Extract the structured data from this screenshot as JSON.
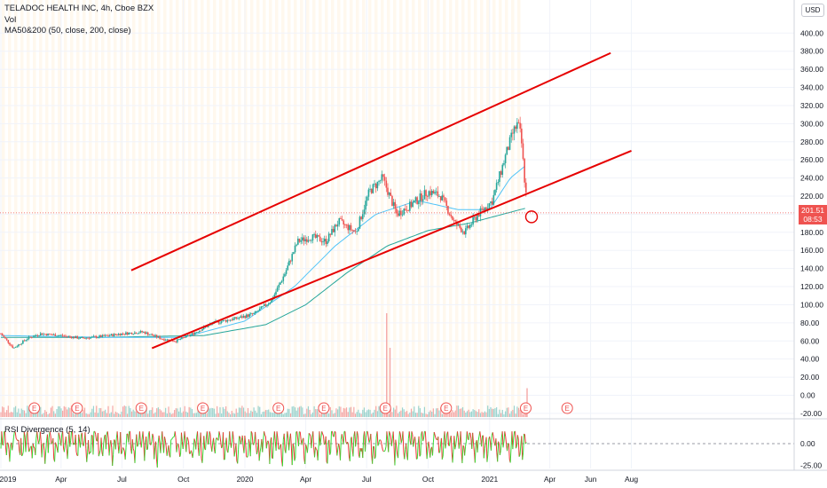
{
  "header": {
    "title": "TELADOC HEALTH INC, 4h, Cboe BZX",
    "vol_label": "Vol",
    "ma_label": "MA50&200 (50, close, 200, close)",
    "rsi_label": "RSI Divergence (5, 14)"
  },
  "currency_button": "USD",
  "last_price": {
    "value": "201.51",
    "countdown": "08:53"
  },
  "earnings_marker": "E",
  "colors": {
    "up": "#26a69a",
    "down": "#ef5350",
    "channel": "#e60000",
    "ma_fast": "#4fc3f7",
    "ma_slow": "#26a69a",
    "rsi_up": "#33dd33",
    "rsi_down": "#ee3333",
    "session_shade": "#fff8ee"
  },
  "chart_data": [
    {
      "type": "candlestick",
      "title": "TELADOC HEALTH INC, 4h, Cboe BZX",
      "price_axis_labels": [
        "400.00",
        "380.00",
        "360.00",
        "340.00",
        "320.00",
        "300.00",
        "280.00",
        "260.00",
        "240.00",
        "220.00",
        "200.00",
        "180.00",
        "160.00",
        "140.00",
        "120.00",
        "100.00",
        "80.00",
        "60.00",
        "40.00",
        "20.00",
        "0.00",
        "-20.00"
      ],
      "time_axis_labels": [
        "2019",
        "Apr",
        "Jul",
        "Oct",
        "2020",
        "Apr",
        "Jul",
        "Oct",
        "2021",
        "Apr",
        "Jun",
        "Aug"
      ],
      "ylim": [
        -20,
        400
      ],
      "price_path": [
        [
          "2019-01-01",
          68
        ],
        [
          "2019-01-20",
          52
        ],
        [
          "2019-02-10",
          63
        ],
        [
          "2019-03-01",
          68
        ],
        [
          "2019-04-01",
          66
        ],
        [
          "2019-05-01",
          63
        ],
        [
          "2019-06-01",
          65
        ],
        [
          "2019-07-01",
          68
        ],
        [
          "2019-08-01",
          70
        ],
        [
          "2019-09-01",
          62
        ],
        [
          "2019-09-20",
          60
        ],
        [
          "2019-10-15",
          68
        ],
        [
          "2019-11-15",
          80
        ],
        [
          "2019-12-20",
          85
        ],
        [
          "2020-01-15",
          90
        ],
        [
          "2020-02-10",
          105
        ],
        [
          "2020-03-01",
          135
        ],
        [
          "2020-03-20",
          170
        ],
        [
          "2020-04-10",
          175
        ],
        [
          "2020-05-01",
          170
        ],
        [
          "2020-05-20",
          192
        ],
        [
          "2020-06-15",
          180
        ],
        [
          "2020-07-05",
          225
        ],
        [
          "2020-07-25",
          240
        ],
        [
          "2020-08-15",
          200
        ],
        [
          "2020-09-05",
          210
        ],
        [
          "2020-10-01",
          225
        ],
        [
          "2020-10-20",
          220
        ],
        [
          "2020-11-10",
          190
        ],
        [
          "2020-11-25",
          180
        ],
        [
          "2020-12-15",
          200
        ],
        [
          "2021-01-05",
          215
        ],
        [
          "2021-01-25",
          265
        ],
        [
          "2021-02-05",
          290
        ],
        [
          "2021-02-12",
          300
        ],
        [
          "2021-02-17",
          285
        ],
        [
          "2021-02-22",
          240
        ],
        [
          "2021-02-25",
          218
        ],
        [
          "2021-02-26",
          201.51
        ]
      ],
      "ma50_path": [
        [
          "2019-01-01",
          66
        ],
        [
          "2019-06-01",
          64
        ],
        [
          "2019-10-01",
          64
        ],
        [
          "2020-01-01",
          82
        ],
        [
          "2020-03-15",
          120
        ],
        [
          "2020-05-15",
          165
        ],
        [
          "2020-07-15",
          200
        ],
        [
          "2020-09-15",
          215
        ],
        [
          "2020-11-15",
          205
        ],
        [
          "2021-01-01",
          205
        ],
        [
          "2021-02-01",
          240
        ],
        [
          "2021-02-26",
          255
        ]
      ],
      "ma200_path": [
        [
          "2019-01-01",
          64
        ],
        [
          "2019-06-01",
          64
        ],
        [
          "2019-11-01",
          66
        ],
        [
          "2020-02-01",
          78
        ],
        [
          "2020-04-01",
          100
        ],
        [
          "2020-06-01",
          135
        ],
        [
          "2020-08-01",
          165
        ],
        [
          "2020-10-01",
          182
        ],
        [
          "2020-12-01",
          190
        ],
        [
          "2021-02-26",
          207
        ]
      ],
      "channel_lines": [
        {
          "name": "upper",
          "from": [
            "2019-07-15",
            138
          ],
          "to": [
            "2021-07-01",
            378
          ]
        },
        {
          "name": "lower",
          "from": [
            "2019-08-15",
            52
          ],
          "to": [
            "2021-08-01",
            270
          ]
        }
      ],
      "highlight_circle": [
        "2021-02-26",
        201
      ],
      "earnings_dates": [
        "2019-02-20",
        "2019-04-25",
        "2019-07-30",
        "2019-10-30",
        "2020-02-20",
        "2020-04-28",
        "2020-07-29",
        "2020-10-28",
        "2021-02-24",
        "2021-04-27"
      ],
      "volume_spikes": [
        [
          "2020-07-31",
          90
        ],
        [
          "2020-08-05",
          60
        ],
        [
          "2021-02-26",
          25
        ]
      ]
    },
    {
      "type": "line",
      "title": "RSI Divergence (5, 14)",
      "axis_labels": [
        "0.00",
        "-25.00"
      ],
      "ylim": [
        -35,
        18
      ],
      "zero_line": true
    }
  ]
}
